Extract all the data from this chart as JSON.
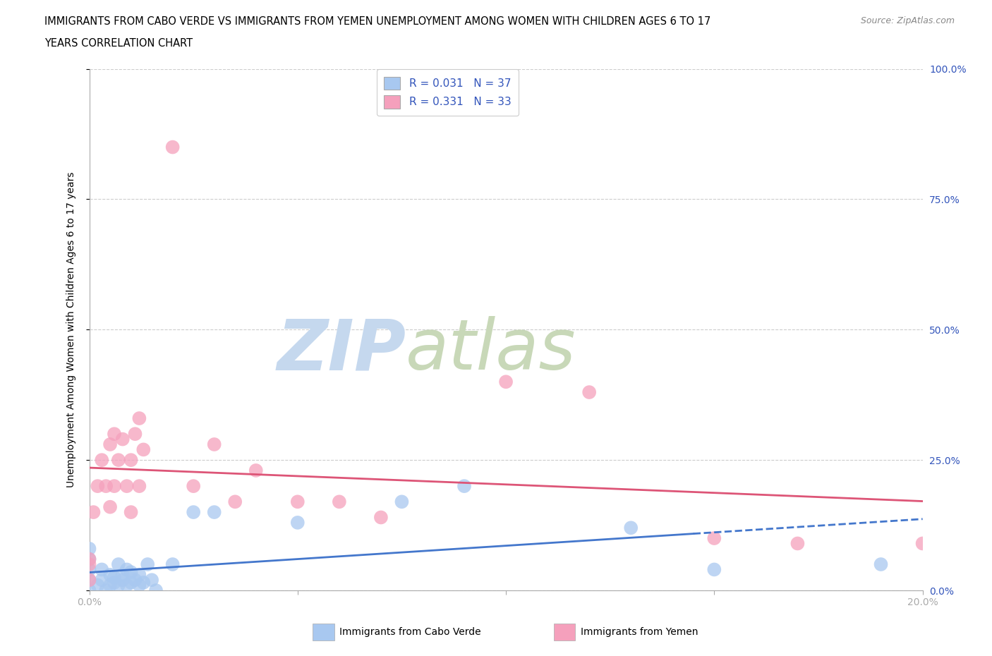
{
  "title_line1": "IMMIGRANTS FROM CABO VERDE VS IMMIGRANTS FROM YEMEN UNEMPLOYMENT AMONG WOMEN WITH CHILDREN AGES 6 TO 17",
  "title_line2": "YEARS CORRELATION CHART",
  "source_text": "Source: ZipAtlas.com",
  "ylabel": "Unemployment Among Women with Children Ages 6 to 17 years",
  "xlim": [
    0,
    0.2
  ],
  "ylim": [
    0,
    1.0
  ],
  "cabo_verde_R": "0.031",
  "cabo_verde_N": "37",
  "yemen_R": "0.331",
  "yemen_N": "33",
  "cabo_verde_color": "#a8c8f0",
  "yemen_color": "#f5a0bc",
  "cabo_verde_line_color": "#4477cc",
  "yemen_line_color": "#dd5577",
  "legend_R_N_color": "#3355bb",
  "watermark_zip": "ZIP",
  "watermark_atlas": "atlas",
  "watermark_color_zip": "#c8d8ee",
  "watermark_color_atlas": "#c8d8c8",
  "background_color": "#ffffff",
  "grid_color": "#cccccc",
  "cabo_verde_x": [
    0.0,
    0.0,
    0.0,
    0.0,
    0.0,
    0.002,
    0.003,
    0.003,
    0.004,
    0.005,
    0.005,
    0.006,
    0.006,
    0.007,
    0.007,
    0.008,
    0.008,
    0.009,
    0.009,
    0.01,
    0.01,
    0.011,
    0.012,
    0.012,
    0.013,
    0.014,
    0.015,
    0.016,
    0.02,
    0.025,
    0.03,
    0.05,
    0.075,
    0.09,
    0.13,
    0.15,
    0.19
  ],
  "cabo_verde_y": [
    0.0,
    0.02,
    0.04,
    0.06,
    0.08,
    0.01,
    0.02,
    0.04,
    0.0,
    0.01,
    0.03,
    0.015,
    0.025,
    0.01,
    0.05,
    0.02,
    0.03,
    0.01,
    0.04,
    0.015,
    0.035,
    0.02,
    0.01,
    0.03,
    0.015,
    0.05,
    0.02,
    0.0,
    0.05,
    0.15,
    0.15,
    0.13,
    0.17,
    0.2,
    0.12,
    0.04,
    0.05
  ],
  "yemen_x": [
    0.0,
    0.0,
    0.0,
    0.001,
    0.002,
    0.003,
    0.004,
    0.005,
    0.005,
    0.006,
    0.006,
    0.007,
    0.008,
    0.009,
    0.01,
    0.01,
    0.011,
    0.012,
    0.012,
    0.013,
    0.02,
    0.025,
    0.03,
    0.035,
    0.04,
    0.05,
    0.06,
    0.07,
    0.1,
    0.12,
    0.15,
    0.17,
    0.2
  ],
  "yemen_y": [
    0.02,
    0.05,
    0.06,
    0.15,
    0.2,
    0.25,
    0.2,
    0.16,
    0.28,
    0.2,
    0.3,
    0.25,
    0.29,
    0.2,
    0.25,
    0.15,
    0.3,
    0.2,
    0.33,
    0.27,
    0.85,
    0.2,
    0.28,
    0.17,
    0.23,
    0.17,
    0.17,
    0.14,
    0.4,
    0.38,
    0.1,
    0.09,
    0.09
  ]
}
